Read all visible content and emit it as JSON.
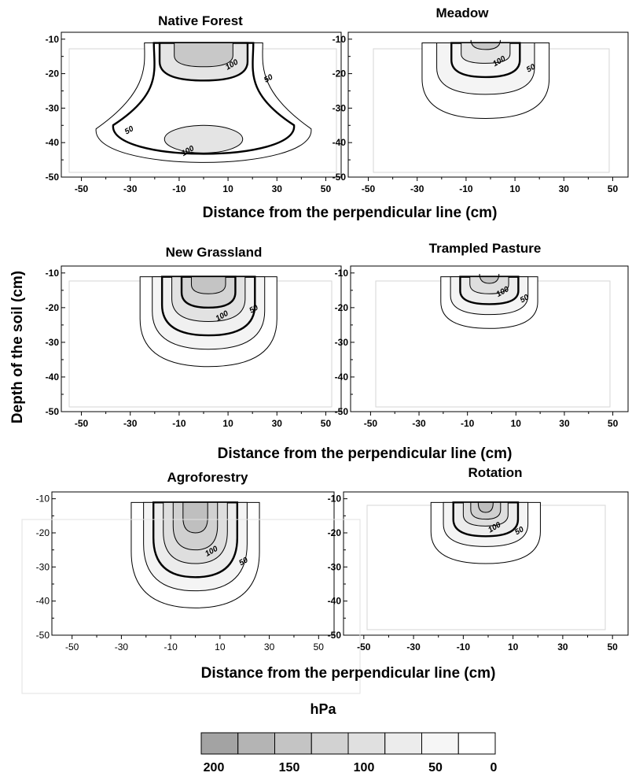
{
  "figure": {
    "ylabel": "Depth of the soil  (cm)",
    "xlabel": "Distance from the perpendicular line (cm)"
  },
  "chart_data": {
    "type": "contour",
    "x_ticks": [
      "-50",
      "-30",
      "-10",
      "10",
      "30",
      "50"
    ],
    "y_ticks": [
      "-10",
      "-20",
      "-30",
      "-40",
      "-50"
    ],
    "xlim": [
      -55,
      55
    ],
    "ylim": [
      -50,
      -8
    ],
    "unit": "hPa",
    "panels": [
      {
        "title": "Native Forest",
        "labels": [
          {
            "text": "100",
            "x": 12,
            "y": -18
          },
          {
            "text": "50",
            "x": 27,
            "y": -22
          },
          {
            "text": "50",
            "x": -30,
            "y": -37
          },
          {
            "text": "100",
            "x": -6,
            "y": -43
          }
        ],
        "bands": [
          {
            "level": 50,
            "fill": "#ffffff",
            "stroke": "thin",
            "shape": "blob",
            "cx": 0,
            "cy": -29,
            "rx": 44,
            "ry": 20,
            "pinch": 0.55
          },
          {
            "level": 100,
            "fill": "#ffffff",
            "stroke": "thick",
            "shape": "blob",
            "cx": 0,
            "cy": -29,
            "rx": 37,
            "ry": 17,
            "pinch": 0.5
          },
          {
            "level": 125,
            "fill": "#e4e4e4",
            "stroke": "thick",
            "shape": "top",
            "cx": 0,
            "rx": 18,
            "bottom": -22
          },
          {
            "level": 150,
            "fill": "#c8c8c8",
            "stroke": "thin",
            "shape": "top",
            "cx": 0,
            "rx": 12,
            "bottom": -18
          },
          {
            "level": 120,
            "fill": "#e4e4e4",
            "stroke": "thin",
            "shape": "ellipse",
            "cx": 0,
            "cy": -39,
            "rx": 16,
            "ry": 4
          }
        ]
      },
      {
        "title": "Meadow",
        "labels": [
          {
            "text": "100",
            "x": 4,
            "y": -17
          },
          {
            "text": "50",
            "x": 17,
            "y": -19
          }
        ],
        "bands": [
          {
            "level": 0,
            "fill": "#ffffff",
            "stroke": "thin",
            "shape": "top",
            "cx": -2,
            "rx": 26,
            "bottom": -33
          },
          {
            "level": 25,
            "fill": "#f4f4f4",
            "stroke": "thin",
            "shape": "top",
            "cx": -2,
            "rx": 20,
            "bottom": -26
          },
          {
            "level": 50,
            "fill": "#f4f4f4",
            "stroke": "thick",
            "shape": "top",
            "cx": -2,
            "rx": 14,
            "bottom": -21
          },
          {
            "level": 100,
            "fill": "#e4e4e4",
            "stroke": "thin",
            "shape": "top",
            "cx": -2,
            "rx": 10,
            "bottom": -17
          },
          {
            "level": 150,
            "fill": "#c8c8c8",
            "stroke": "thin",
            "shape": "top",
            "cx": -2,
            "rx": 6,
            "bottom": -13
          }
        ]
      },
      {
        "title": "New Grassland",
        "labels": [
          {
            "text": "100",
            "x": 8,
            "y": -23
          },
          {
            "text": "50",
            "x": 21,
            "y": -21
          }
        ],
        "bands": [
          {
            "level": 0,
            "fill": "#ffffff",
            "stroke": "thin",
            "shape": "top",
            "cx": 2,
            "rx": 28,
            "bottom": -37
          },
          {
            "level": 25,
            "fill": "#f4f4f4",
            "stroke": "thin",
            "shape": "top",
            "cx": 2,
            "rx": 23,
            "bottom": -32
          },
          {
            "level": 50,
            "fill": "#f0f0f0",
            "stroke": "thick",
            "shape": "top",
            "cx": 2,
            "rx": 19,
            "bottom": -28
          },
          {
            "level": 100,
            "fill": "#e2e2e2",
            "stroke": "thin",
            "shape": "top",
            "cx": 2,
            "rx": 15,
            "bottom": -24
          },
          {
            "level": 125,
            "fill": "#d4d4d4",
            "stroke": "thick",
            "shape": "top",
            "cx": 2,
            "rx": 11,
            "bottom": -20
          },
          {
            "level": 150,
            "fill": "#c4c4c4",
            "stroke": "thin",
            "shape": "top",
            "cx": 2,
            "rx": 7,
            "bottom": -16
          }
        ]
      },
      {
        "title": "Trampled Pasture",
        "labels": [
          {
            "text": "100",
            "x": 5,
            "y": -16
          },
          {
            "text": "50",
            "x": 14,
            "y": -18
          }
        ],
        "bands": [
          {
            "level": 0,
            "fill": "#ffffff",
            "stroke": "thin",
            "shape": "top",
            "cx": -1,
            "rx": 20,
            "bottom": -26
          },
          {
            "level": 25,
            "fill": "#f4f4f4",
            "stroke": "thin",
            "shape": "top",
            "cx": -1,
            "rx": 16,
            "bottom": -22
          },
          {
            "level": 50,
            "fill": "#ececec",
            "stroke": "thick",
            "shape": "top",
            "cx": -1,
            "rx": 12,
            "bottom": -19
          },
          {
            "level": 100,
            "fill": "#dedede",
            "stroke": "thin",
            "shape": "top",
            "cx": -1,
            "rx": 8,
            "bottom": -16
          },
          {
            "level": 150,
            "fill": "#c4c4c4",
            "stroke": "thin",
            "shape": "top",
            "cx": -1,
            "rx": 4,
            "bottom": -13
          }
        ]
      },
      {
        "title": "Agroforestry",
        "labels": [
          {
            "text": "100",
            "x": 7,
            "y": -26
          },
          {
            "text": "50",
            "x": 20,
            "y": -29
          }
        ],
        "bands": [
          {
            "level": 0,
            "fill": "#ffffff",
            "stroke": "thin",
            "shape": "top",
            "cx": 0,
            "rx": 26,
            "bottom": -42
          },
          {
            "level": 25,
            "fill": "#f4f4f4",
            "stroke": "thin",
            "shape": "top",
            "cx": 0,
            "rx": 21,
            "bottom": -37
          },
          {
            "level": 50,
            "fill": "#ececec",
            "stroke": "thick",
            "shape": "top",
            "cx": 0,
            "rx": 17,
            "bottom": -33
          },
          {
            "level": 100,
            "fill": "#dedede",
            "stroke": "thin",
            "shape": "top",
            "cx": 0,
            "rx": 13,
            "bottom": -29
          },
          {
            "level": 125,
            "fill": "#d0d0d0",
            "stroke": "thin",
            "shape": "top",
            "cx": 0,
            "rx": 9,
            "bottom": -25
          },
          {
            "level": 150,
            "fill": "#bfbfbf",
            "stroke": "thin",
            "shape": "top",
            "cx": 0,
            "rx": 5,
            "bottom": -20
          }
        ]
      },
      {
        "title": "Rotation",
        "labels": [
          {
            "text": "100",
            "x": 3,
            "y": -19
          },
          {
            "text": "50",
            "x": 13,
            "y": -20
          }
        ],
        "bands": [
          {
            "level": 0,
            "fill": "#ffffff",
            "stroke": "thin",
            "shape": "top",
            "cx": -1,
            "rx": 22,
            "bottom": -29
          },
          {
            "level": 25,
            "fill": "#f4f4f4",
            "stroke": "thin",
            "shape": "top",
            "cx": -1,
            "rx": 17,
            "bottom": -24
          },
          {
            "level": 50,
            "fill": "#ececec",
            "stroke": "thick",
            "shape": "top",
            "cx": -1,
            "rx": 13,
            "bottom": -21
          },
          {
            "level": 100,
            "fill": "#dedede",
            "stroke": "thin",
            "shape": "top",
            "cx": -1,
            "rx": 9,
            "bottom": -18
          },
          {
            "level": 125,
            "fill": "#cfcfcf",
            "stroke": "thin",
            "shape": "top",
            "cx": -1,
            "rx": 6,
            "bottom": -16
          },
          {
            "level": 150,
            "fill": "#bdbdbd",
            "stroke": "thin",
            "shape": "top",
            "cx": -1,
            "rx": 3,
            "bottom": -14
          }
        ]
      }
    ],
    "legend": {
      "title": "hPa",
      "colors": [
        "#a3a3a3",
        "#b4b4b4",
        "#c4c4c4",
        "#d2d2d2",
        "#e0e0e0",
        "#ececec",
        "#f6f6f6",
        "#ffffff"
      ],
      "tick_labels": [
        "200",
        "150",
        "100",
        "50",
        "0"
      ]
    }
  }
}
